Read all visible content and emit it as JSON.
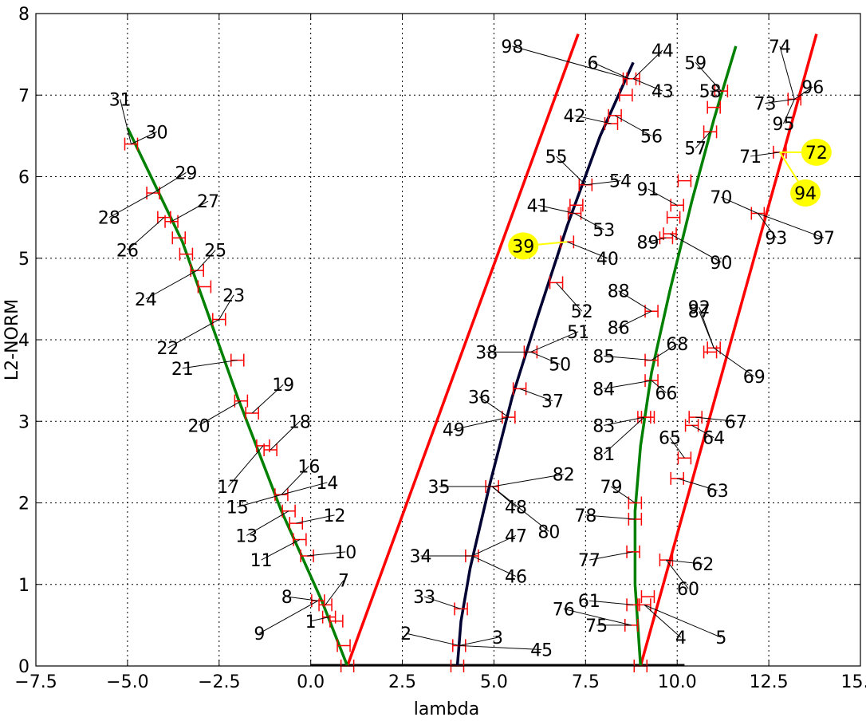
{
  "chart_data": {
    "type": "line",
    "title": "",
    "xlabel": "lambda",
    "ylabel": "L2-NORM",
    "xlim": [
      -7.5,
      15.0
    ],
    "ylim": [
      0,
      8
    ],
    "xticks": [
      "−7.5",
      "−5.0",
      "−2.5",
      "0.0",
      "2.5",
      "5.0",
      "7.5",
      "10.0",
      "12.5",
      "15.0"
    ],
    "yticks": [
      "0",
      "1",
      "2",
      "3",
      "4",
      "5",
      "6",
      "7",
      "8"
    ],
    "grid": true,
    "colors": {
      "red": "#ff0000",
      "green": "#008000",
      "navy": "#000033",
      "yellow": "#ffff00",
      "errorbar": "#ff0000"
    },
    "series": [
      {
        "color": "#ff0000",
        "points": [
          [
            1.0,
            0.0
          ],
          [
            7.3,
            7.75
          ]
        ]
      },
      {
        "color": "#ff0000",
        "points": [
          [
            9.0,
            0.0
          ],
          [
            13.8,
            7.75
          ]
        ]
      },
      {
        "color": "#008000",
        "points": [
          [
            -5.0,
            6.6
          ],
          [
            -3.5,
            5.2
          ],
          [
            -2.0,
            3.3
          ],
          [
            -0.8,
            1.9
          ],
          [
            0.3,
            0.8
          ],
          [
            1.0,
            0.0
          ]
        ]
      },
      {
        "color": "#000033",
        "points": [
          [
            4.0,
            0.0
          ],
          [
            4.1,
            0.55
          ],
          [
            4.35,
            1.2
          ],
          [
            4.9,
            2.25
          ],
          [
            5.5,
            3.3
          ],
          [
            6.2,
            4.3
          ],
          [
            7.0,
            5.4
          ],
          [
            7.9,
            6.5
          ],
          [
            8.8,
            7.4
          ]
        ]
      },
      {
        "color": "#008000",
        "points": [
          [
            9.0,
            0.0
          ],
          [
            8.85,
            1.0
          ],
          [
            8.85,
            1.9
          ],
          [
            9.0,
            2.7
          ],
          [
            9.3,
            3.6
          ],
          [
            9.8,
            4.6
          ],
          [
            10.4,
            5.7
          ],
          [
            11.0,
            6.7
          ],
          [
            11.6,
            7.6
          ]
        ]
      }
    ],
    "markers": [
      [
        -4.9,
        6.4
      ],
      [
        -4.3,
        5.8
      ],
      [
        -4.0,
        5.5
      ],
      [
        -3.8,
        5.45
      ],
      [
        -3.6,
        5.25
      ],
      [
        -3.4,
        5.05
      ],
      [
        -3.1,
        4.85
      ],
      [
        -2.9,
        4.65
      ],
      [
        -2.5,
        4.25
      ],
      [
        -2.0,
        3.75
      ],
      [
        -1.9,
        3.25
      ],
      [
        -1.6,
        3.1
      ],
      [
        -1.3,
        2.7
      ],
      [
        -1.1,
        2.65
      ],
      [
        -0.8,
        2.1
      ],
      [
        -0.6,
        1.9
      ],
      [
        -0.4,
        1.75
      ],
      [
        -0.3,
        1.55
      ],
      [
        -0.1,
        1.35
      ],
      [
        0.2,
        0.8
      ],
      [
        0.4,
        0.75
      ],
      [
        0.5,
        0.6
      ],
      [
        0.7,
        0.55
      ],
      [
        0.9,
        0.25
      ],
      [
        1.0,
        0.0
      ],
      [
        4.0,
        0.0
      ],
      [
        4.05,
        0.25
      ],
      [
        4.1,
        0.7
      ],
      [
        4.4,
        1.35
      ],
      [
        4.95,
        2.2
      ],
      [
        5.4,
        3.05
      ],
      [
        5.7,
        3.4
      ],
      [
        6.0,
        3.85
      ],
      [
        6.7,
        4.7
      ],
      [
        7.0,
        5.2
      ],
      [
        7.2,
        5.55
      ],
      [
        7.25,
        5.65
      ],
      [
        7.5,
        5.9
      ],
      [
        8.2,
        6.65
      ],
      [
        8.3,
        6.75
      ],
      [
        8.6,
        7.0
      ],
      [
        8.7,
        7.2
      ],
      [
        8.8,
        7.2
      ],
      [
        9.0,
        0.0
      ],
      [
        8.75,
        0.5
      ],
      [
        8.8,
        0.75
      ],
      [
        9.1,
        0.75
      ],
      [
        9.2,
        0.85
      ],
      [
        8.8,
        1.4
      ],
      [
        8.85,
        1.8
      ],
      [
        8.85,
        2.0
      ],
      [
        9.2,
        3.05
      ],
      [
        9.1,
        3.05
      ],
      [
        9.3,
        3.5
      ],
      [
        9.3,
        3.75
      ],
      [
        9.3,
        4.35
      ],
      [
        9.7,
        5.25
      ],
      [
        9.8,
        5.3
      ],
      [
        9.9,
        5.5
      ],
      [
        10.0,
        5.65
      ],
      [
        10.2,
        5.95
      ],
      [
        10.9,
        6.55
      ],
      [
        11.0,
        6.85
      ],
      [
        11.2,
        7.05
      ],
      [
        10.0,
        2.3
      ],
      [
        10.2,
        2.55
      ],
      [
        10.4,
        2.95
      ],
      [
        10.5,
        3.05
      ],
      [
        10.9,
        3.85
      ],
      [
        11.0,
        3.9
      ],
      [
        12.2,
        5.55
      ],
      [
        12.8,
        6.3
      ],
      [
        13.2,
        6.95
      ],
      [
        9.7,
        1.3
      ]
    ],
    "annotations": [
      {
        "text": "1",
        "x": 0.0,
        "y": 0.55
      },
      {
        "text": "2",
        "x": 2.6,
        "y": 0.4
      },
      {
        "text": "3",
        "x": 5.1,
        "y": 0.35
      },
      {
        "text": "4",
        "x": 10.1,
        "y": 0.35
      },
      {
        "text": "5",
        "x": 11.2,
        "y": 0.35
      },
      {
        "text": "6",
        "x": 7.7,
        "y": 7.4
      },
      {
        "text": "7",
        "x": 0.9,
        "y": 1.05
      },
      {
        "text": "8",
        "x": -0.65,
        "y": 0.85
      },
      {
        "text": "9",
        "x": -1.4,
        "y": 0.4
      },
      {
        "text": "10",
        "x": 0.95,
        "y": 1.4
      },
      {
        "text": "11",
        "x": -1.35,
        "y": 1.3
      },
      {
        "text": "12",
        "x": 0.65,
        "y": 1.85
      },
      {
        "text": "13",
        "x": -1.75,
        "y": 1.6
      },
      {
        "text": "14",
        "x": 0.45,
        "y": 2.25
      },
      {
        "text": "15",
        "x": -2.0,
        "y": 1.95
      },
      {
        "text": "16",
        "x": -0.05,
        "y": 2.45
      },
      {
        "text": "17",
        "x": -2.25,
        "y": 2.2
      },
      {
        "text": "18",
        "x": -0.3,
        "y": 3.0
      },
      {
        "text": "19",
        "x": -0.75,
        "y": 3.45
      },
      {
        "text": "20",
        "x": -3.05,
        "y": 2.95
      },
      {
        "text": "21",
        "x": -3.5,
        "y": 3.65
      },
      {
        "text": "22",
        "x": -3.9,
        "y": 3.9
      },
      {
        "text": "23",
        "x": -2.1,
        "y": 4.55
      },
      {
        "text": "24",
        "x": -4.5,
        "y": 4.5
      },
      {
        "text": "25",
        "x": -2.6,
        "y": 5.1
      },
      {
        "text": "26",
        "x": -5.0,
        "y": 5.1
      },
      {
        "text": "27",
        "x": -2.8,
        "y": 5.7
      },
      {
        "text": "28",
        "x": -5.5,
        "y": 5.5
      },
      {
        "text": "29",
        "x": -3.4,
        "y": 6.05
      },
      {
        "text": "30",
        "x": -4.2,
        "y": 6.55
      },
      {
        "text": "31",
        "x": -5.2,
        "y": 6.95
      },
      {
        "text": "33",
        "x": 3.1,
        "y": 0.85
      },
      {
        "text": "34",
        "x": 3.0,
        "y": 1.35
      },
      {
        "text": "35",
        "x": 3.5,
        "y": 2.2
      },
      {
        "text": "36",
        "x": 4.6,
        "y": 3.3
      },
      {
        "text": "37",
        "x": 6.6,
        "y": 3.25
      },
      {
        "text": "38",
        "x": 4.8,
        "y": 3.85
      },
      {
        "text": "39",
        "x": 5.8,
        "y": 5.15,
        "highlight": true
      },
      {
        "text": "40",
        "x": 8.1,
        "y": 5.0
      },
      {
        "text": "41",
        "x": 6.2,
        "y": 5.65
      },
      {
        "text": "42",
        "x": 7.2,
        "y": 6.75
      },
      {
        "text": "43",
        "x": 9.6,
        "y": 7.05
      },
      {
        "text": "44",
        "x": 9.6,
        "y": 7.55
      },
      {
        "text": "45",
        "x": 6.3,
        "y": 0.2
      },
      {
        "text": "46",
        "x": 5.6,
        "y": 1.1
      },
      {
        "text": "47",
        "x": 5.6,
        "y": 1.6
      },
      {
        "text": "48",
        "x": 5.6,
        "y": 1.95
      },
      {
        "text": "49",
        "x": 3.9,
        "y": 2.9
      },
      {
        "text": "50",
        "x": 6.8,
        "y": 3.7
      },
      {
        "text": "51",
        "x": 7.3,
        "y": 4.1
      },
      {
        "text": "52",
        "x": 7.4,
        "y": 4.35
      },
      {
        "text": "53",
        "x": 8.0,
        "y": 5.35
      },
      {
        "text": "54",
        "x": 8.45,
        "y": 5.95
      },
      {
        "text": "55",
        "x": 6.7,
        "y": 6.25
      },
      {
        "text": "56",
        "x": 9.3,
        "y": 6.5
      },
      {
        "text": "57",
        "x": 10.5,
        "y": 6.35
      },
      {
        "text": "58",
        "x": 10.9,
        "y": 7.05
      },
      {
        "text": "59",
        "x": 10.5,
        "y": 7.4
      },
      {
        "text": "60",
        "x": 10.3,
        "y": 0.95
      },
      {
        "text": "61",
        "x": 7.6,
        "y": 0.8
      },
      {
        "text": "62",
        "x": 10.7,
        "y": 1.25
      },
      {
        "text": "63",
        "x": 11.1,
        "y": 2.15
      },
      {
        "text": "64",
        "x": 11.0,
        "y": 2.8
      },
      {
        "text": "65",
        "x": 9.8,
        "y": 2.8
      },
      {
        "text": "66",
        "x": 9.7,
        "y": 3.35
      },
      {
        "text": "67",
        "x": 11.6,
        "y": 3.0
      },
      {
        "text": "68",
        "x": 10.0,
        "y": 3.95
      },
      {
        "text": "69",
        "x": 12.1,
        "y": 3.55
      },
      {
        "text": "70",
        "x": 11.2,
        "y": 5.75
      },
      {
        "text": "71",
        "x": 12.0,
        "y": 6.25
      },
      {
        "text": "72",
        "x": 13.8,
        "y": 6.3,
        "highlight": true
      },
      {
        "text": "73",
        "x": 12.4,
        "y": 6.9
      },
      {
        "text": "74",
        "x": 12.8,
        "y": 7.6
      },
      {
        "text": "75",
        "x": 7.8,
        "y": 0.5
      },
      {
        "text": "76",
        "x": 6.9,
        "y": 0.7
      },
      {
        "text": "77",
        "x": 7.6,
        "y": 1.3
      },
      {
        "text": "78",
        "x": 7.5,
        "y": 1.85
      },
      {
        "text": "79",
        "x": 8.2,
        "y": 2.2
      },
      {
        "text": "80",
        "x": 6.5,
        "y": 1.65
      },
      {
        "text": "81",
        "x": 8.0,
        "y": 2.6
      },
      {
        "text": "82",
        "x": 6.9,
        "y": 2.35
      },
      {
        "text": "83",
        "x": 8.0,
        "y": 2.95
      },
      {
        "text": "84",
        "x": 8.0,
        "y": 3.4
      },
      {
        "text": "85",
        "x": 8.0,
        "y": 3.8
      },
      {
        "text": "86",
        "x": 8.4,
        "y": 4.15
      },
      {
        "text": "87",
        "x": 10.6,
        "y": 4.35
      },
      {
        "text": "88",
        "x": 8.4,
        "y": 4.6
      },
      {
        "text": "89",
        "x": 9.2,
        "y": 5.2
      },
      {
        "text": "90",
        "x": 11.2,
        "y": 4.95
      },
      {
        "text": "91",
        "x": 9.2,
        "y": 5.85
      },
      {
        "text": "92",
        "x": 10.6,
        "y": 4.4
      },
      {
        "text": "93",
        "x": 12.7,
        "y": 5.25
      },
      {
        "text": "94",
        "x": 13.5,
        "y": 5.8,
        "highlight": true
      },
      {
        "text": "95",
        "x": 12.9,
        "y": 6.65
      },
      {
        "text": "96",
        "x": 13.7,
        "y": 7.1
      },
      {
        "text": "97",
        "x": 14.0,
        "y": 5.25
      },
      {
        "text": "98",
        "x": 5.5,
        "y": 7.6
      }
    ]
  }
}
